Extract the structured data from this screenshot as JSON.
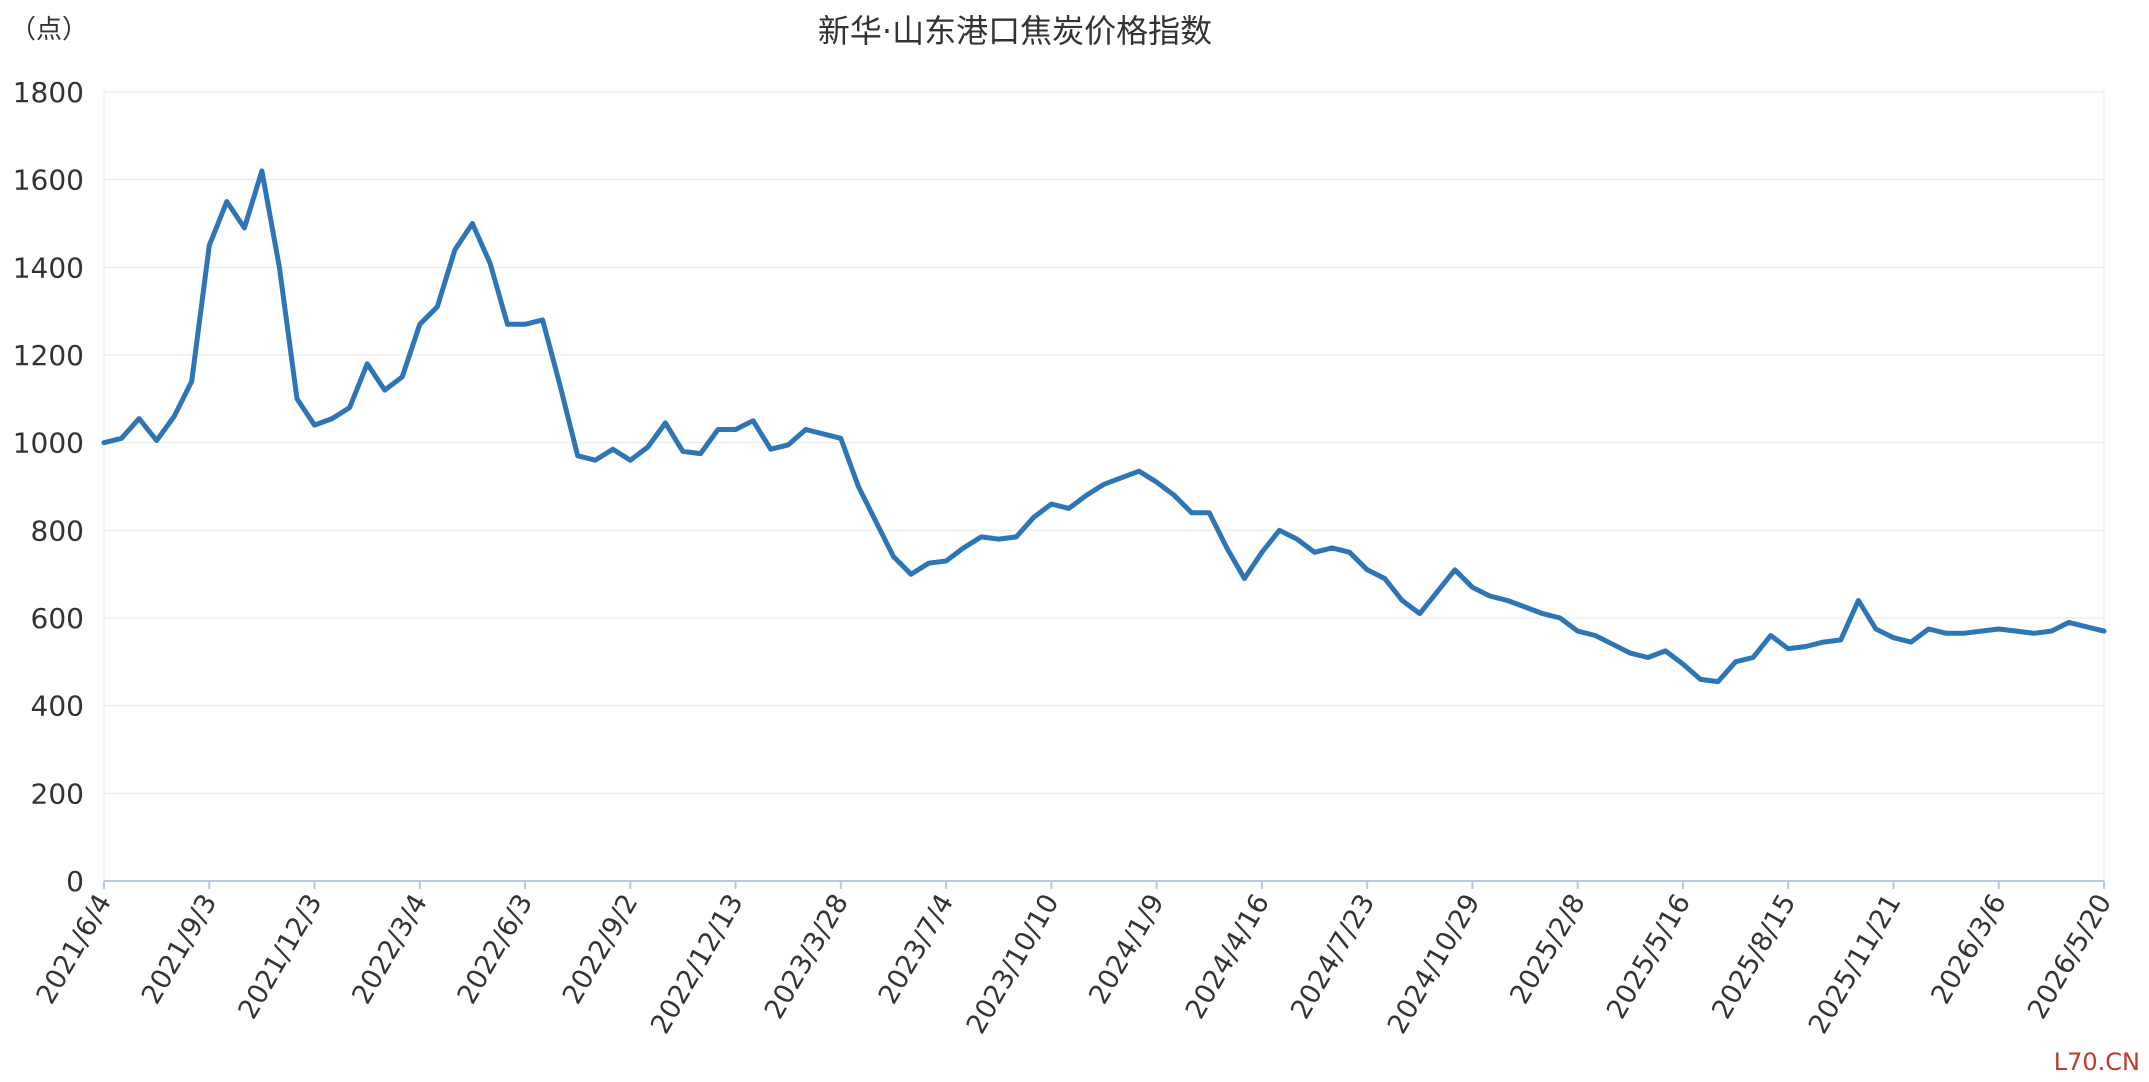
{
  "chart_data": {
    "type": "line",
    "title": "新华·山东港口焦炭价格指数",
    "y_label": "（点）",
    "watermark": "L70.CN",
    "categories": [
      "2021/6/4",
      null,
      null,
      null,
      null,
      null,
      "2021/9/3",
      null,
      null,
      null,
      null,
      null,
      "2021/12/3",
      null,
      null,
      null,
      null,
      null,
      "2022/3/4",
      null,
      null,
      null,
      null,
      null,
      "2022/6/3",
      null,
      null,
      null,
      null,
      null,
      "2022/9/2",
      null,
      null,
      null,
      null,
      null,
      "2022/12/13",
      null,
      null,
      null,
      null,
      null,
      "2023/3/28",
      null,
      null,
      null,
      null,
      null,
      "2023/7/4",
      null,
      null,
      null,
      null,
      null,
      "2023/10/10",
      null,
      null,
      null,
      null,
      null,
      "2024/1/9",
      null,
      null,
      null,
      null,
      null,
      "2024/4/16",
      null,
      null,
      null,
      null,
      null,
      "2024/7/23",
      null,
      null,
      null,
      null,
      null,
      "2024/10/29",
      null,
      null,
      null,
      null,
      null,
      "2025/2/8",
      null,
      null,
      null,
      null,
      null,
      "2025/5/16",
      null,
      null,
      null,
      null,
      null,
      "2025/8/15",
      null,
      null,
      null,
      null,
      null,
      "2025/11/21",
      null,
      null,
      null,
      null,
      null,
      "2026/3/6",
      null,
      null,
      null,
      null,
      null,
      "2026/5/20"
    ],
    "series": [
      {
        "name": "新华·山东港口焦炭价格指数",
        "color": "#2e75b6",
        "values": [
          1000,
          1010,
          1055,
          1005,
          1060,
          1140,
          1450,
          1550,
          1490,
          1620,
          1400,
          1100,
          1040,
          1055,
          1080,
          1180,
          1120,
          1150,
          1270,
          1310,
          1440,
          1500,
          1410,
          1270,
          1270,
          1280,
          1130,
          970,
          960,
          985,
          960,
          990,
          1045,
          980,
          975,
          1030,
          1030,
          1050,
          985,
          995,
          1030,
          1020,
          1010,
          900,
          820,
          740,
          700,
          725,
          730,
          760,
          785,
          780,
          785,
          830,
          860,
          850,
          880,
          905,
          920,
          935,
          910,
          880,
          840,
          840,
          760,
          690,
          750,
          800,
          780,
          750,
          760,
          750,
          710,
          690,
          640,
          610,
          660,
          710,
          670,
          650,
          640,
          625,
          610,
          600,
          570,
          560,
          540,
          520,
          510,
          525,
          495,
          460,
          455,
          500,
          510,
          560,
          530,
          535,
          545,
          550,
          640,
          575,
          555,
          545,
          575,
          565,
          565,
          570,
          575,
          570,
          565,
          570,
          590,
          580,
          570
        ]
      }
    ],
    "ylim": [
      0,
      1800
    ],
    "yticks": [
      0,
      200,
      400,
      600,
      800,
      1000,
      1200,
      1400,
      1600,
      1800
    ],
    "grid": true
  }
}
